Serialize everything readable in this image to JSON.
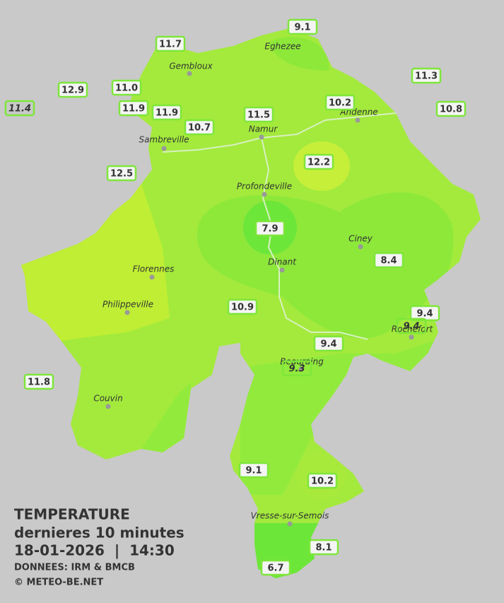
{
  "header": {
    "title": "TEMPERATURE",
    "subtitle": "dernieres 10 minutes",
    "datetime": "18-01-2026  |  14:30",
    "source": "DONNEES: IRM & BMCB",
    "credit": "© METEO-BE.NET"
  },
  "cities": [
    "Eghezee",
    "Gembloux",
    "Andenne",
    "Namur",
    "Sambreville",
    "Profondeville",
    "Ciney",
    "Dinant",
    "Florennes",
    "Philippeville",
    "Couvin",
    "Vresse-sur-Semois",
    "Beauraing",
    "Rochefort"
  ],
  "stations": [
    "9.1",
    "11.7",
    "11.3",
    "12.9",
    "11.0",
    "10.2",
    "11.4",
    "11.9",
    "11.9",
    "11.5",
    "10.8",
    "10.7",
    "12.2",
    "12.5",
    "7.9",
    "8.4",
    "10.9",
    "9.4",
    "9.4",
    "9.4",
    "9.3",
    "11.8",
    "9.1",
    "10.2",
    "8.1",
    "6.7"
  ]
}
